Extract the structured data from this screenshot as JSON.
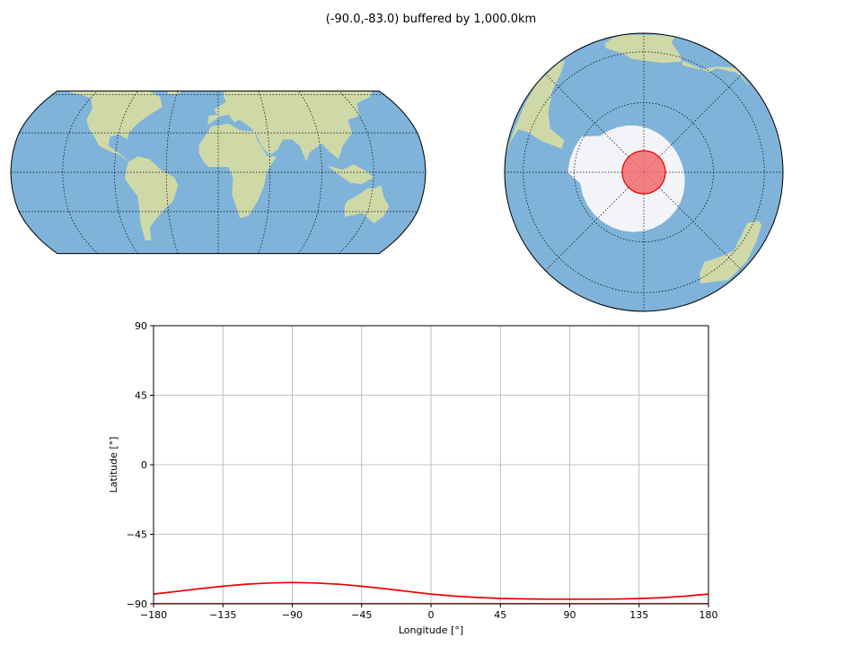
{
  "figure": {
    "title": "(-90.0,-83.0) buffered by 1,000.0km"
  },
  "colors": {
    "ocean": "#7fb3d9",
    "land": "#cfd9a8",
    "ice": "#f2f4f8",
    "buffer_fill": "#f26b6b",
    "buffer_edge": "#ee0000",
    "grid": "#b0b0b0"
  },
  "maps": [
    {
      "name": "global-robinson-map",
      "projection": "Robinson"
    },
    {
      "name": "south-polar-orthographic-map",
      "projection": "Orthographic",
      "central_latitude": -90
    }
  ],
  "buffer": {
    "center": {
      "lon": -90.0,
      "lat": -83.0
    },
    "radius_km": 1000.0
  },
  "chart_data": {
    "type": "line",
    "xlabel": "Longitude [°]",
    "ylabel": "Latitude [°]",
    "xlim": [
      -180,
      180
    ],
    "ylim": [
      -90,
      90
    ],
    "xticks": [
      "−180",
      "−135",
      "−90",
      "−45",
      "0",
      "45",
      "90",
      "135",
      "180"
    ],
    "yticks": [
      "−90",
      "−45",
      "0",
      "45",
      "90"
    ],
    "grid": true,
    "series": [
      {
        "x": [
          -180,
          -165,
          -150,
          -135,
          -120,
          -105,
          -90,
          -75,
          -60,
          -45,
          -30,
          -15,
          0,
          15,
          30,
          45,
          60,
          75,
          90,
          105,
          120,
          135,
          150,
          165,
          180
        ],
        "y": [
          -83.7,
          -82.0,
          -80.2,
          -78.6,
          -77.3,
          -76.5,
          -76.2,
          -76.5,
          -77.3,
          -78.6,
          -80.2,
          -82.0,
          -83.7,
          -85.0,
          -85.9,
          -86.5,
          -86.8,
          -87.0,
          -87.0,
          -87.0,
          -86.9,
          -86.6,
          -86.0,
          -85.0,
          -83.7
        ],
        "color": "#ee0000"
      },
      {
        "x": [
          -180,
          180
        ],
        "y": [
          -90,
          -90
        ],
        "color": "#ee0000"
      }
    ]
  }
}
